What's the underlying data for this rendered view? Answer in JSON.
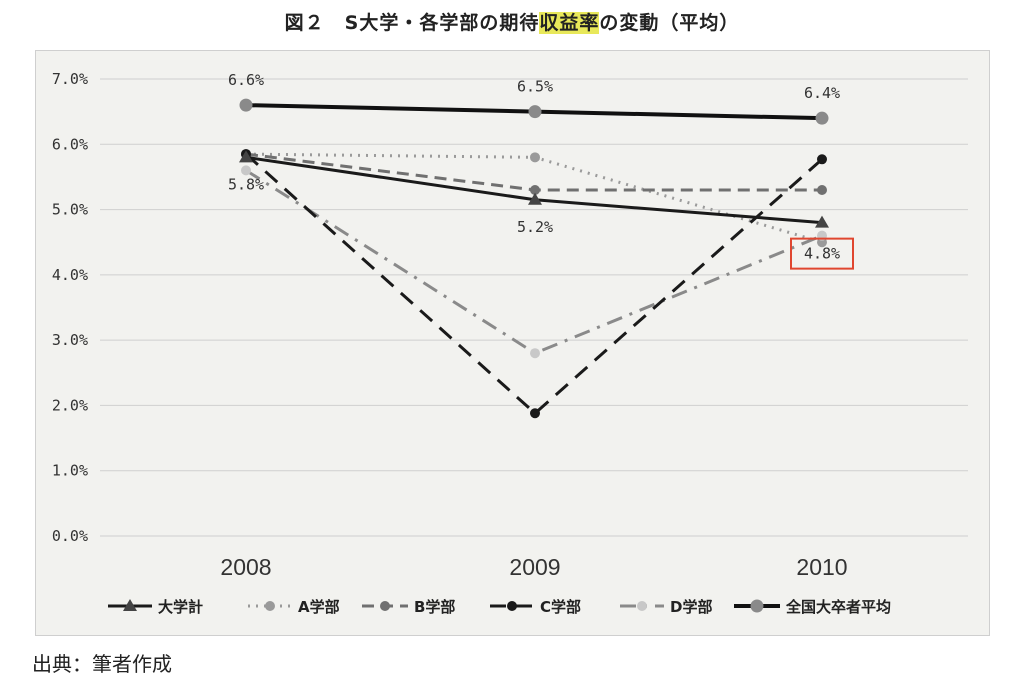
{
  "title": {
    "prefix": "図２　S大学・各学部の期待",
    "highlight": "収益率",
    "suffix": "の変動（平均）"
  },
  "source_text": "出典：筆者作成",
  "chart_data": {
    "type": "line",
    "categories": [
      "2008",
      "2009",
      "2010"
    ],
    "ylim": [
      0,
      0.07
    ],
    "yticks": [
      "0.0%",
      "1.0%",
      "2.0%",
      "3.0%",
      "4.0%",
      "5.0%",
      "6.0%",
      "7.0%"
    ],
    "grid": true,
    "legend_position": "bottom",
    "series": [
      {
        "name": "大学計",
        "values": [
          0.058,
          0.0515,
          0.048
        ],
        "color": "#1a1a1a",
        "dash": "solid",
        "width": 3,
        "marker": "triangle",
        "marker_color": "#444444"
      },
      {
        "name": "A学部",
        "values": [
          0.0585,
          0.058,
          0.045
        ],
        "color": "#9a9a9a",
        "dash": "dotted",
        "width": 3,
        "marker": "circle",
        "marker_color": "#9a9a9a"
      },
      {
        "name": "B学部",
        "values": [
          0.0585,
          0.053,
          0.053
        ],
        "color": "#707070",
        "dash": "dashed",
        "width": 3,
        "marker": "circle",
        "marker_color": "#707070"
      },
      {
        "name": "C学部",
        "values": [
          0.0585,
          0.0188,
          0.0577
        ],
        "color": "#1a1a1a",
        "dash": "longdash",
        "width": 3,
        "marker": "circle",
        "marker_color": "#1a1a1a"
      },
      {
        "name": "D学部",
        "values": [
          0.056,
          0.028,
          0.046
        ],
        "color": "#8a8a8a",
        "dash": "dashdot",
        "width": 3,
        "marker": "circle",
        "marker_color": "#c8c8c8"
      },
      {
        "name": "全国大卒者平均",
        "values": [
          0.066,
          0.065,
          0.064
        ],
        "color": "#111111",
        "dash": "solid",
        "width": 4,
        "marker": "circle",
        "marker_color": "#8a8a8a"
      }
    ],
    "data_labels": [
      {
        "text": "6.6%",
        "series": "全国大卒者平均",
        "index": 0,
        "position": "above"
      },
      {
        "text": "6.5%",
        "series": "全国大卒者平均",
        "index": 1,
        "position": "above"
      },
      {
        "text": "6.4%",
        "series": "全国大卒者平均",
        "index": 2,
        "position": "above"
      },
      {
        "text": "5.8%",
        "series": "大学計",
        "index": 0,
        "position": "below"
      },
      {
        "text": "5.2%",
        "series": "大学計",
        "index": 1,
        "position": "below"
      },
      {
        "text": "4.8%",
        "series": "大学計",
        "index": 2,
        "position": "below-boxed"
      }
    ],
    "highlight_box_color": "#e0462f"
  }
}
